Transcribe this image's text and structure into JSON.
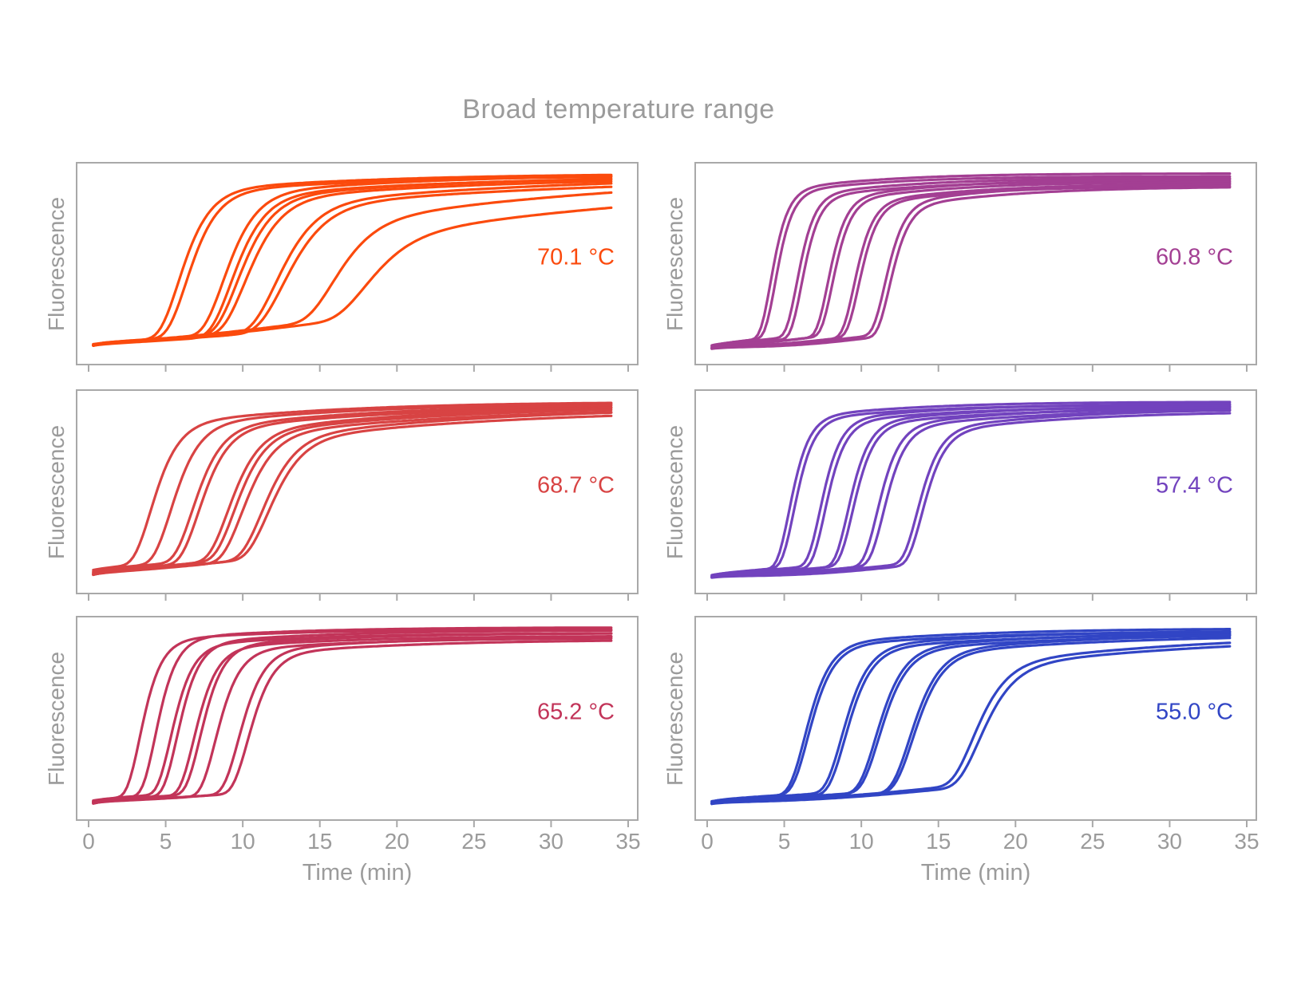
{
  "figure": {
    "title": "Broad temperature range"
  },
  "chart_data": [
    {
      "type": "line",
      "panel": "top-left",
      "annotation": "70.1 °C",
      "color": "#FB4A0D",
      "ylabel": "Fluorescence",
      "xlabel": "Time (min)",
      "xlim": [
        -1,
        35.7
      ],
      "xticks": [
        0,
        5,
        10,
        15,
        20,
        25,
        30,
        35
      ],
      "xtick_labels_visible": false,
      "xlabel_visible": false,
      "grid": false,
      "legend": "none",
      "x_start": 0.3,
      "x_end": 34,
      "baseline": 0.05,
      "curve_model": "gompertz-sigmoid (midpoint in min, rate 1/min, plateau as fraction of axis height)",
      "curves": [
        {
          "midpoint": 5.8,
          "rate": 0.85,
          "plateau": 0.985,
          "slow_fraction": 0.15
        },
        {
          "midpoint": 6.3,
          "rate": 0.85,
          "plateau": 0.975,
          "slow_fraction": 0.15
        },
        {
          "midpoint": 8.7,
          "rate": 0.8,
          "plateau": 0.985,
          "slow_fraction": 0.18
        },
        {
          "midpoint": 9.2,
          "rate": 0.78,
          "plateau": 0.97,
          "slow_fraction": 0.18
        },
        {
          "midpoint": 9.6,
          "rate": 0.75,
          "plateau": 0.975,
          "slow_fraction": 0.2
        },
        {
          "midpoint": 10.1,
          "rate": 0.72,
          "plateau": 0.965,
          "slow_fraction": 0.2
        },
        {
          "midpoint": 12.1,
          "rate": 0.65,
          "plateau": 0.97,
          "slow_fraction": 0.25
        },
        {
          "midpoint": 12.6,
          "rate": 0.62,
          "plateau": 0.955,
          "slow_fraction": 0.25
        },
        {
          "midpoint": 15.8,
          "rate": 0.62,
          "plateau": 0.97,
          "slow_fraction": 0.42
        },
        {
          "midpoint": 17.9,
          "rate": 0.55,
          "plateau": 0.93,
          "slow_fraction": 0.5
        }
      ]
    },
    {
      "type": "line",
      "panel": "top-right",
      "annotation": "60.8 °C",
      "color": "#A33F93",
      "ylabel": "Fluorescence",
      "xlabel": "Time (min)",
      "xlim": [
        -1,
        35.7
      ],
      "xticks": [
        0,
        5,
        10,
        15,
        20,
        25,
        30,
        35
      ],
      "xtick_labels_visible": false,
      "xlabel_visible": false,
      "grid": false,
      "legend": "none",
      "x_start": 0.3,
      "x_end": 34,
      "baseline": 0.05,
      "curve_model": "gompertz-sigmoid (midpoint in min, rate 1/min, plateau as fraction of axis height)",
      "curves": [
        {
          "midpoint": 4.1,
          "rate": 1.55,
          "plateau": 0.985,
          "slow_fraction": 0.15
        },
        {
          "midpoint": 4.4,
          "rate": 1.55,
          "plateau": 0.97,
          "slow_fraction": 0.15
        },
        {
          "midpoint": 5.8,
          "rate": 1.5,
          "plateau": 0.96,
          "slow_fraction": 0.16
        },
        {
          "midpoint": 6.1,
          "rate": 1.5,
          "plateau": 0.945,
          "slow_fraction": 0.16
        },
        {
          "midpoint": 7.8,
          "rate": 1.45,
          "plateau": 0.955,
          "slow_fraction": 0.18
        },
        {
          "midpoint": 8.1,
          "rate": 1.45,
          "plateau": 0.94,
          "slow_fraction": 0.18
        },
        {
          "midpoint": 9.5,
          "rate": 1.4,
          "plateau": 0.93,
          "slow_fraction": 0.18
        },
        {
          "midpoint": 9.8,
          "rate": 1.4,
          "plateau": 0.92,
          "slow_fraction": 0.18
        },
        {
          "midpoint": 11.5,
          "rate": 1.35,
          "plateau": 0.935,
          "slow_fraction": 0.2
        },
        {
          "midpoint": 11.8,
          "rate": 1.35,
          "plateau": 0.915,
          "slow_fraction": 0.2
        }
      ]
    },
    {
      "type": "line",
      "panel": "middle-left",
      "annotation": "68.7 °C",
      "color": "#D84343",
      "ylabel": "Fluorescence",
      "xlabel": "Time (min)",
      "xlim": [
        -1,
        35.7
      ],
      "xticks": [
        0,
        5,
        10,
        15,
        20,
        25,
        30,
        35
      ],
      "xtick_labels_visible": false,
      "xlabel_visible": false,
      "grid": false,
      "legend": "none",
      "x_start": 0.3,
      "x_end": 34,
      "baseline": 0.05,
      "curve_model": "gompertz-sigmoid (midpoint in min, rate 1/min, plateau as fraction of axis height)",
      "curves": [
        {
          "midpoint": 4.0,
          "rate": 0.95,
          "plateau": 0.98,
          "slow_fraction": 0.2
        },
        {
          "midpoint": 5.3,
          "rate": 0.92,
          "plateau": 0.975,
          "slow_fraction": 0.2
        },
        {
          "midpoint": 6.7,
          "rate": 0.9,
          "plateau": 0.97,
          "slow_fraction": 0.22
        },
        {
          "midpoint": 7.1,
          "rate": 0.9,
          "plateau": 0.96,
          "slow_fraction": 0.22
        },
        {
          "midpoint": 9.0,
          "rate": 0.85,
          "plateau": 0.965,
          "slow_fraction": 0.25
        },
        {
          "midpoint": 9.4,
          "rate": 0.85,
          "plateau": 0.955,
          "slow_fraction": 0.25
        },
        {
          "midpoint": 9.9,
          "rate": 0.82,
          "plateau": 0.945,
          "slow_fraction": 0.25
        },
        {
          "midpoint": 11.2,
          "rate": 0.78,
          "plateau": 0.95,
          "slow_fraction": 0.28
        },
        {
          "midpoint": 11.6,
          "rate": 0.76,
          "plateau": 0.935,
          "slow_fraction": 0.28
        }
      ]
    },
    {
      "type": "line",
      "panel": "middle-right",
      "annotation": "57.4 °C",
      "color": "#7243BE",
      "ylabel": "Fluorescence",
      "xlabel": "Time (min)",
      "xlim": [
        -1,
        35.7
      ],
      "xticks": [
        0,
        5,
        10,
        15,
        20,
        25,
        30,
        35
      ],
      "xtick_labels_visible": false,
      "xlabel_visible": false,
      "grid": false,
      "legend": "none",
      "x_start": 0.3,
      "x_end": 34,
      "baseline": 0.05,
      "curve_model": "gompertz-sigmoid (midpoint in min, rate 1/min, plateau as fraction of axis height)",
      "curves": [
        {
          "midpoint": 5.3,
          "rate": 1.35,
          "plateau": 0.98,
          "slow_fraction": 0.14
        },
        {
          "midpoint": 5.6,
          "rate": 1.35,
          "plateau": 0.965,
          "slow_fraction": 0.14
        },
        {
          "midpoint": 7.3,
          "rate": 1.3,
          "plateau": 0.97,
          "slow_fraction": 0.15
        },
        {
          "midpoint": 7.6,
          "rate": 1.3,
          "plateau": 0.955,
          "slow_fraction": 0.15
        },
        {
          "midpoint": 9.1,
          "rate": 1.25,
          "plateau": 0.96,
          "slow_fraction": 0.16
        },
        {
          "midpoint": 9.4,
          "rate": 1.25,
          "plateau": 0.945,
          "slow_fraction": 0.16
        },
        {
          "midpoint": 11.0,
          "rate": 1.2,
          "plateau": 0.955,
          "slow_fraction": 0.18
        },
        {
          "midpoint": 11.4,
          "rate": 1.2,
          "plateau": 0.94,
          "slow_fraction": 0.18
        },
        {
          "midpoint": 13.6,
          "rate": 1.15,
          "plateau": 0.945,
          "slow_fraction": 0.2
        },
        {
          "midpoint": 13.9,
          "rate": 1.15,
          "plateau": 0.93,
          "slow_fraction": 0.2
        }
      ]
    },
    {
      "type": "line",
      "panel": "bottom-left",
      "annotation": "65.2 °C",
      "color": "#C23459",
      "ylabel": "Fluorescence",
      "xlabel": "Time (min)",
      "xlim": [
        -1,
        35.7
      ],
      "xticks": [
        0,
        5,
        10,
        15,
        20,
        25,
        30,
        35
      ],
      "xtick_labels_visible": true,
      "xlabel_visible": true,
      "grid": false,
      "legend": "none",
      "x_start": 0.3,
      "x_end": 34,
      "baseline": 0.05,
      "curve_model": "gompertz-sigmoid (midpoint in min, rate 1/min, plateau as fraction of axis height)",
      "curves": [
        {
          "midpoint": 3.3,
          "rate": 1.25,
          "plateau": 0.975,
          "slow_fraction": 0.1
        },
        {
          "midpoint": 4.3,
          "rate": 1.25,
          "plateau": 0.985,
          "slow_fraction": 0.1
        },
        {
          "midpoint": 5.3,
          "rate": 1.2,
          "plateau": 0.955,
          "slow_fraction": 0.12
        },
        {
          "midpoint": 5.7,
          "rate": 1.2,
          "plateau": 0.97,
          "slow_fraction": 0.12
        },
        {
          "midpoint": 6.8,
          "rate": 1.15,
          "plateau": 0.94,
          "slow_fraction": 0.12
        },
        {
          "midpoint": 7.2,
          "rate": 1.15,
          "plateau": 0.955,
          "slow_fraction": 0.12
        },
        {
          "midpoint": 8.2,
          "rate": 1.1,
          "plateau": 0.93,
          "slow_fraction": 0.12
        },
        {
          "midpoint": 9.7,
          "rate": 1.05,
          "plateau": 0.94,
          "slow_fraction": 0.14
        },
        {
          "midpoint": 10.3,
          "rate": 1.05,
          "plateau": 0.92,
          "slow_fraction": 0.14
        }
      ]
    },
    {
      "type": "line",
      "panel": "bottom-right",
      "annotation": "55.0 °C",
      "color": "#3145C5",
      "ylabel": "Fluorescence",
      "xlabel": "Time (min)",
      "xlim": [
        -1,
        35.7
      ],
      "xticks": [
        0,
        5,
        10,
        15,
        20,
        25,
        30,
        35
      ],
      "xtick_labels_visible": true,
      "xlabel_visible": true,
      "grid": false,
      "legend": "none",
      "x_start": 0.3,
      "x_end": 34,
      "baseline": 0.05,
      "curve_model": "gompertz-sigmoid (midpoint in min, rate 1/min, plateau as fraction of axis height)",
      "curves": [
        {
          "midpoint": 6.3,
          "rate": 1.05,
          "plateau": 0.98,
          "slow_fraction": 0.14
        },
        {
          "midpoint": 6.5,
          "rate": 1.05,
          "plateau": 0.965,
          "slow_fraction": 0.14
        },
        {
          "midpoint": 8.7,
          "rate": 1.0,
          "plateau": 0.97,
          "slow_fraction": 0.15
        },
        {
          "midpoint": 8.9,
          "rate": 1.0,
          "plateau": 0.955,
          "slow_fraction": 0.15
        },
        {
          "midpoint": 10.9,
          "rate": 0.95,
          "plateau": 0.965,
          "slow_fraction": 0.16
        },
        {
          "midpoint": 11.1,
          "rate": 0.95,
          "plateau": 0.95,
          "slow_fraction": 0.16
        },
        {
          "midpoint": 13.1,
          "rate": 0.9,
          "plateau": 0.96,
          "slow_fraction": 0.18
        },
        {
          "midpoint": 13.3,
          "rate": 0.9,
          "plateau": 0.945,
          "slow_fraction": 0.18
        },
        {
          "midpoint": 17.2,
          "rate": 0.78,
          "plateau": 0.95,
          "slow_fraction": 0.28
        },
        {
          "midpoint": 17.6,
          "rate": 0.75,
          "plateau": 0.935,
          "slow_fraction": 0.28
        }
      ]
    }
  ]
}
